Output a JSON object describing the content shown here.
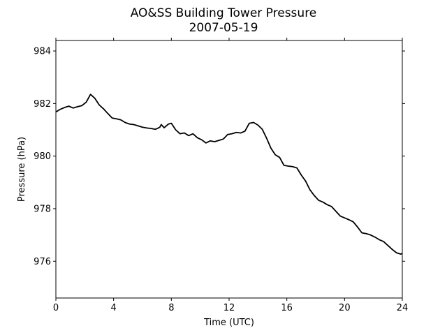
{
  "chart_data": {
    "type": "line",
    "title": "AO&SS Building Tower Pressure",
    "subtitle": "2007-05-19",
    "xlabel": "Time (UTC)",
    "ylabel": "Pressure (hPa)",
    "xlim": [
      0,
      24
    ],
    "ylim": [
      974.6,
      984.4
    ],
    "xticks": [
      0,
      4,
      8,
      12,
      16,
      20,
      24
    ],
    "yticks": [
      976,
      978,
      980,
      982,
      984
    ],
    "grid": false,
    "line_color": "#000000",
    "series": [
      {
        "x": [
          0,
          0.3,
          0.6,
          0.9,
          1.2,
          1.5,
          1.8,
          2.1,
          2.4,
          2.7,
          3.0,
          3.3,
          3.6,
          3.9,
          4.2,
          4.5,
          4.8,
          5.1,
          5.4,
          5.7,
          6.0,
          6.3,
          6.6,
          6.9,
          7.2,
          7.3,
          7.5,
          7.8,
          8.0,
          8.3,
          8.6,
          8.9,
          9.2,
          9.5,
          9.8,
          10.1,
          10.4,
          10.7,
          11.0,
          11.3,
          11.6,
          11.9,
          12.2,
          12.5,
          12.8,
          13.1,
          13.4,
          13.7,
          14.0,
          14.3,
          14.6,
          14.9,
          15.2,
          15.5,
          15.8,
          16.1,
          16.4,
          16.7,
          17.0,
          17.3,
          17.6,
          17.9,
          18.2,
          18.5,
          18.8,
          19.1,
          19.4,
          19.7,
          20.0,
          20.3,
          20.6,
          20.9,
          21.2,
          21.5,
          21.8,
          22.1,
          22.4,
          22.7,
          23.0,
          23.3,
          23.6,
          23.9,
          24.0
        ],
        "values": [
          981.68,
          981.78,
          981.85,
          981.9,
          981.83,
          981.88,
          981.92,
          982.05,
          982.35,
          982.2,
          981.95,
          981.8,
          981.62,
          981.45,
          981.42,
          981.38,
          981.28,
          981.22,
          981.2,
          981.15,
          981.1,
          981.07,
          981.05,
          981.02,
          981.1,
          981.2,
          981.08,
          981.22,
          981.25,
          981.0,
          980.85,
          980.88,
          980.78,
          980.85,
          980.7,
          980.62,
          980.5,
          980.58,
          980.55,
          980.6,
          980.65,
          980.82,
          980.85,
          980.9,
          980.88,
          980.95,
          981.25,
          981.28,
          981.18,
          981.02,
          980.68,
          980.3,
          980.05,
          979.95,
          979.65,
          979.62,
          979.6,
          979.55,
          979.28,
          979.05,
          978.72,
          978.5,
          978.32,
          978.25,
          978.15,
          978.08,
          977.9,
          977.72,
          977.65,
          977.58,
          977.5,
          977.3,
          977.08,
          977.05,
          977.0,
          976.92,
          976.82,
          976.75,
          976.6,
          976.45,
          976.32,
          976.27,
          976.3
        ]
      }
    ]
  }
}
